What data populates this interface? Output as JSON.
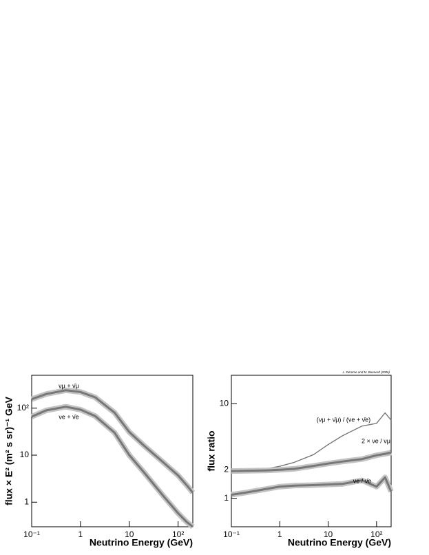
{
  "chart_data": [
    {
      "type": "line",
      "log_x": true,
      "log_y": true,
      "xlabel": "Neutrino Energy (GeV)",
      "ylabel": "flux × E² (m² s sr)⁻¹ GeV",
      "x": [
        0.1,
        0.2,
        0.5,
        1,
        2,
        5,
        10,
        20,
        50,
        100,
        150,
        200
      ],
      "xlim": [
        0.1,
        200
      ],
      "xticks": [
        {
          "value": 0.1,
          "label": "10⁻¹"
        },
        1,
        10,
        {
          "value": 100,
          "label": "10²"
        }
      ],
      "ylim": [
        0.3,
        500
      ],
      "yticks": [
        1,
        10,
        {
          "value": 100,
          "label": "10²"
        }
      ],
      "series": [
        {
          "name": "νμ + ν̄μ",
          "color": "#777777",
          "values": [
            155,
            200,
            240,
            220,
            170,
            80,
            31,
            16,
            7,
            3.7,
            2.3,
            1.6
          ]
        },
        {
          "name": "νe + ν̄e",
          "color": "#777777",
          "values": [
            66,
            90,
            107,
            93,
            68,
            30,
            10,
            4.3,
            1.35,
            0.58,
            0.38,
            0.3
          ]
        }
      ]
    },
    {
      "type": "line",
      "log_x": true,
      "log_y": true,
      "xlabel": "Neutrino Energy (GeV)",
      "ylabel": "flux ratio",
      "credit": "L. Derome and M. Buenerd (2006)",
      "x": [
        0.1,
        0.2,
        0.5,
        1,
        2,
        5,
        10,
        20,
        50,
        100,
        150,
        200
      ],
      "xlim": [
        0.1,
        200
      ],
      "xticks": [
        {
          "value": 0.1,
          "label": "10⁻¹"
        },
        1,
        10,
        {
          "value": 100,
          "label": "10²"
        }
      ],
      "ylim": [
        0.5,
        20
      ],
      "yticks": [
        1,
        2,
        10
      ],
      "series": [
        {
          "name": "(νμ + ν̄μ) / (νe + ν̄e)",
          "color": "#777777",
          "band": false,
          "values": [
            2.03,
            2.0,
            2.05,
            2.18,
            2.4,
            2.9,
            3.7,
            4.6,
            5.8,
            6.2,
            8.0,
            6.7
          ]
        },
        {
          "name": "2 × νe / νμ",
          "color": "#777777",
          "band": true,
          "values": [
            1.94,
            1.95,
            1.97,
            2.0,
            2.05,
            2.2,
            2.33,
            2.45,
            2.6,
            2.85,
            2.95,
            3.05
          ]
        },
        {
          "name": "νe / ν̄e",
          "color": "#777777",
          "band": true,
          "values": [
            1.09,
            1.15,
            1.25,
            1.33,
            1.36,
            1.38,
            1.4,
            1.42,
            1.55,
            1.33,
            1.66,
            1.18
          ]
        }
      ]
    }
  ]
}
